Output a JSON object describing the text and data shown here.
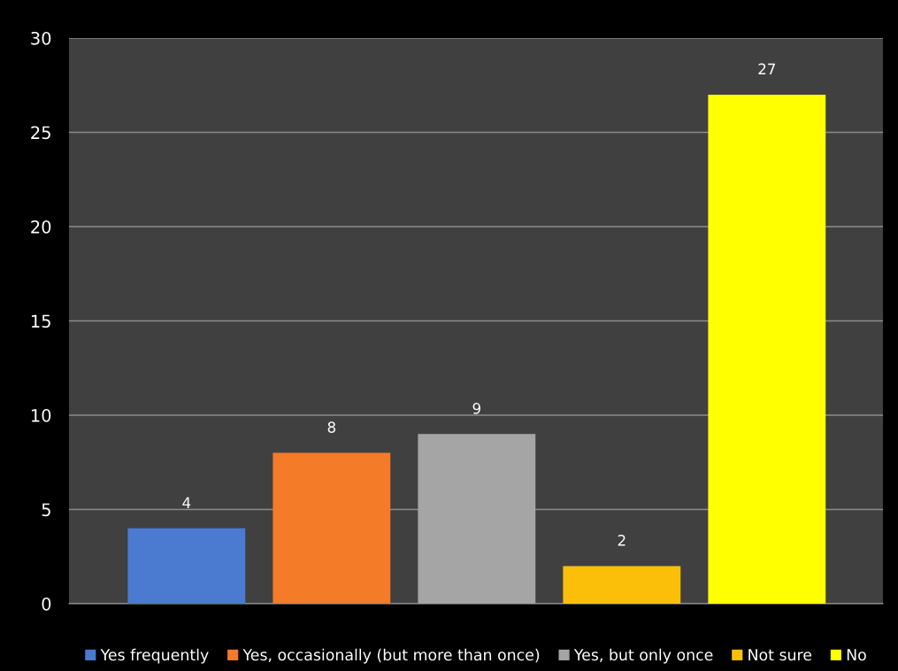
{
  "chart_data": {
    "type": "bar",
    "categories": [
      null,
      null,
      null,
      null,
      null
    ],
    "series": [
      {
        "name": "Yes frequently",
        "color": "#4a7bd0",
        "values": [
          4,
          null,
          null,
          null,
          null
        ]
      },
      {
        "name": "Yes, occasionally (but more than once)",
        "color": "#f47b28",
        "values": [
          null,
          8,
          null,
          null,
          null
        ]
      },
      {
        "name": "Yes, but only once",
        "color": "#a5a5a5",
        "values": [
          null,
          null,
          9,
          null,
          null
        ]
      },
      {
        "name": "Not sure",
        "color": "#fbbf0a",
        "values": [
          null,
          null,
          null,
          2,
          null
        ]
      },
      {
        "name": "No",
        "color": "#ffff00",
        "values": [
          null,
          null,
          null,
          null,
          27
        ]
      }
    ],
    "ylim": [
      0,
      30
    ],
    "yticks": [
      0,
      5,
      10,
      15,
      20,
      25,
      30
    ],
    "grid": "y",
    "legend": "bottom",
    "data_labels": true
  }
}
